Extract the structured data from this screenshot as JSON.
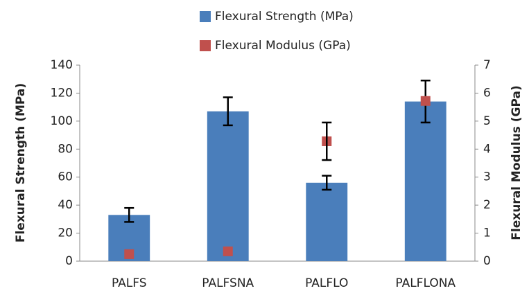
{
  "chart_data": {
    "type": "bar",
    "categories": [
      "PALFS",
      "PALFSNA",
      "PALFLO",
      "PALFLONA"
    ],
    "series": [
      {
        "name": "Flexural Strength (MPa)",
        "color": "#4a7ebb",
        "values": [
          33,
          107,
          56,
          114
        ],
        "errors": [
          5,
          10,
          5,
          15
        ]
      },
      {
        "name": "Flexural Modulus (GPa)",
        "color": "#c0504d",
        "axis": "y2",
        "values": [
          0.25,
          0.35,
          4.28,
          5.72
        ],
        "errors": [
          null,
          null,
          0.67,
          null
        ]
      }
    ],
    "ylabel": "Flexural Strength (MPa)",
    "y2label": "Flexural Modulus (GPa)",
    "ylim": [
      0,
      140
    ],
    "yticks": [
      0,
      20,
      40,
      60,
      80,
      100,
      120,
      140
    ],
    "y2lim": [
      0,
      7
    ],
    "y2ticks": [
      0,
      1,
      2,
      3,
      4,
      5,
      6,
      7
    ],
    "legend": "top"
  }
}
